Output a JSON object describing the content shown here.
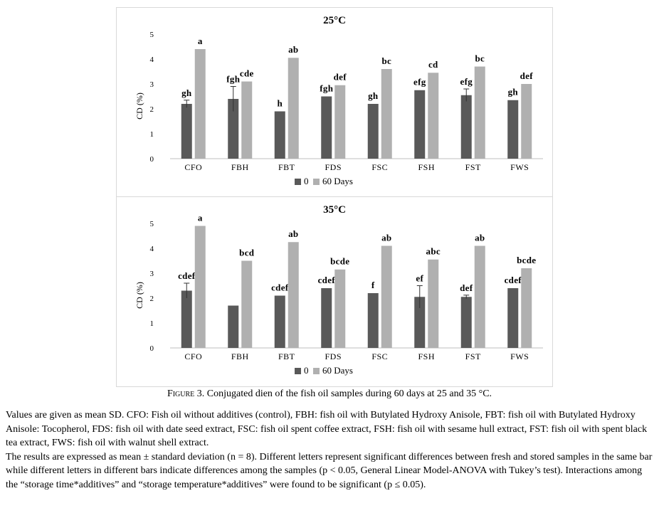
{
  "caption": {
    "figure_label": "Figure 3.",
    "text": " Conjugated dien of the fish oil samples during 60 days at 25 and 35 °C."
  },
  "notes": {
    "line1": "Values are given as mean SD. CFO: Fish oil without additives (control), FBH: fish oil with Butylated Hydroxy Anisole, FBT: fish oil with Butylated Hydroxy Anisole: Tocopherol, FDS: fish oil with date seed extract, FSC: fish oil spent coffee extract, FSH: fish oil with sesame hull extract, FST: fish oil with spent black tea extract, FWS: fish oil with walnut shell extract.",
    "line2": "The results are expressed as mean ± standard deviation (n = 8). Different letters represent significant differences between fresh and stored samples in the same bar while different letters in different bars indicate differences among the samples (p < 0.05, General Linear Model-ANOVA with Tukey’s test). Interactions among the “storage time*additives” and “storage temperature*additives” were found to be significant (p ≤ 0.05)."
  },
  "colors": {
    "series0": "#595959",
    "series60": "#b0b0b0"
  },
  "chart_data": [
    {
      "type": "bar",
      "title": "25°C",
      "ylabel": "CD (%)",
      "xlabel": "",
      "ylim": [
        0,
        5
      ],
      "yticks": [
        "0",
        "1",
        "2",
        "3",
        "4",
        "5"
      ],
      "categories": [
        "CFO",
        "FBH",
        "FBT",
        "FDS",
        "FSC",
        "FSH",
        "FST",
        "FWS"
      ],
      "legend": {
        "position": "bottom"
      },
      "grid": false,
      "series": [
        {
          "name": "0",
          "color": "#595959",
          "values": [
            2.2,
            2.4,
            1.9,
            2.5,
            2.2,
            2.75,
            2.55,
            2.35
          ],
          "errors": [
            0.15,
            0.5,
            0.03,
            0.03,
            0.03,
            0.03,
            0.25,
            0.03
          ],
          "labels": [
            "gh",
            "fgh",
            "h",
            "fgh",
            "gh",
            "efg",
            "efg",
            "gh"
          ]
        },
        {
          "name": "60 Days",
          "color": "#b0b0b0",
          "values": [
            4.4,
            3.1,
            4.05,
            2.95,
            3.6,
            3.45,
            3.7,
            3.0
          ],
          "errors": [
            0.03,
            0.03,
            0.03,
            0.03,
            0.03,
            0.03,
            0.03,
            0.03
          ],
          "labels": [
            "a",
            "cde",
            "ab",
            "def",
            "bc",
            "cd",
            "bc",
            "def"
          ]
        }
      ]
    },
    {
      "type": "bar",
      "title": "35°C",
      "ylabel": "CD (%)",
      "xlabel": "",
      "ylim": [
        0,
        5
      ],
      "yticks": [
        "0",
        "1",
        "2",
        "3",
        "4",
        "5"
      ],
      "categories": [
        "CFO",
        "FBH",
        "FBT",
        "FDS",
        "FSC",
        "FSH",
        "FST",
        "FWS"
      ],
      "legend": {
        "position": "bottom"
      },
      "grid": false,
      "series": [
        {
          "name": "0",
          "color": "#595959",
          "values": [
            2.3,
            1.7,
            2.1,
            2.4,
            2.2,
            2.05,
            2.05,
            2.4
          ],
          "errors": [
            0.3,
            0.03,
            0.03,
            0.03,
            0.03,
            0.45,
            0.07,
            0.03
          ],
          "labels": [
            "cdef",
            "",
            "cdef",
            "cdef",
            "f",
            "ef",
            "def",
            "cdef"
          ]
        },
        {
          "name": "60 Days",
          "color": "#b0b0b0",
          "values": [
            4.9,
            3.5,
            4.25,
            3.15,
            4.1,
            3.55,
            4.1,
            3.2
          ],
          "errors": [
            0.03,
            0.03,
            0.03,
            0.03,
            0.03,
            0.03,
            0.03,
            0.03
          ],
          "labels": [
            "a",
            "bcd",
            "ab",
            "bcde",
            "ab",
            "abc",
            "ab",
            "bcde"
          ]
        }
      ]
    }
  ]
}
